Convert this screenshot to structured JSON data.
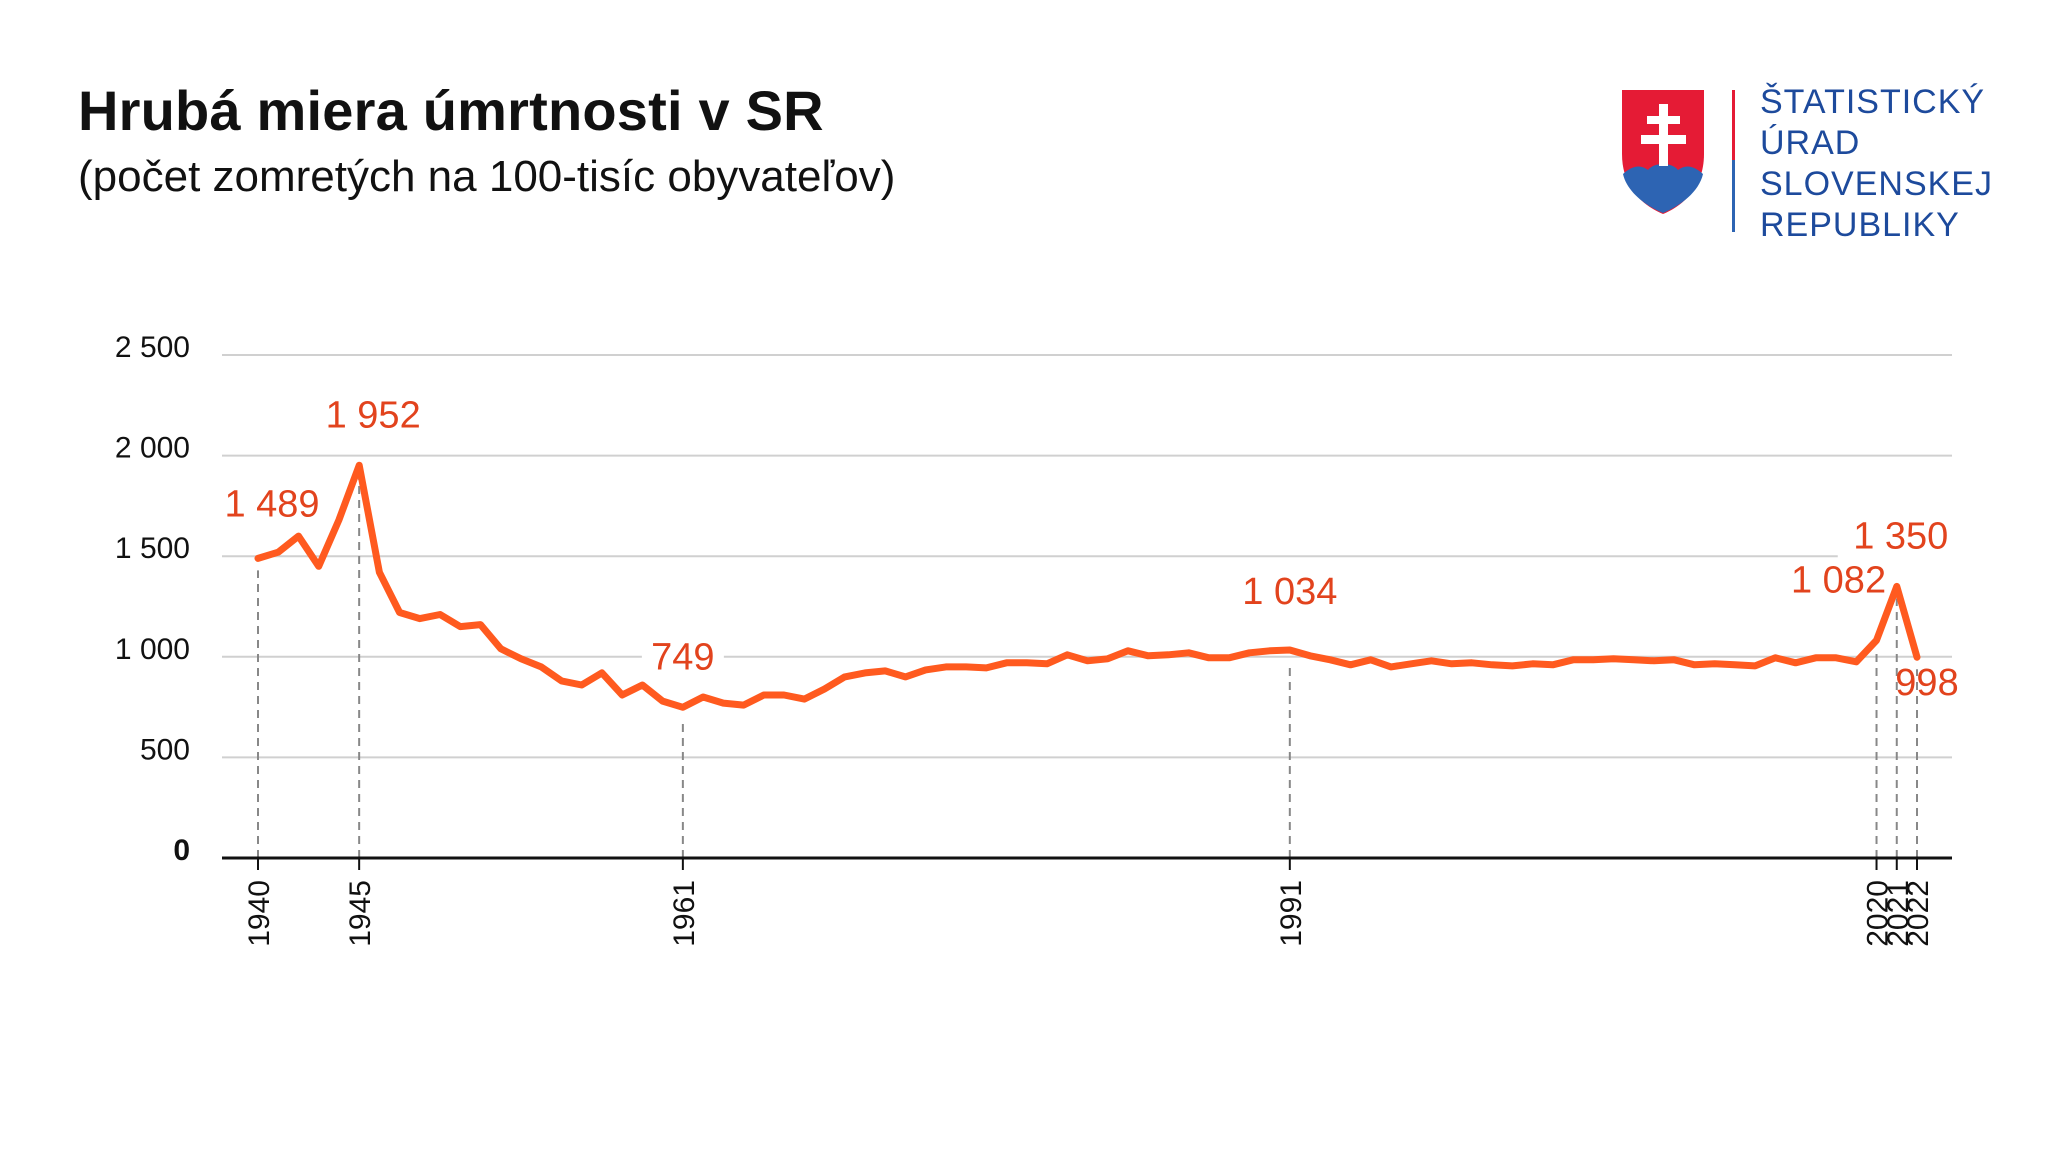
{
  "header": {
    "title": "Hrubá miera úmrtnosti v SR",
    "subtitle": "(počet zomretých na 100-tisíc obyvateľov)"
  },
  "logo": {
    "lines": [
      "ŠTATISTICKÝ",
      "ÚRAD",
      "SLOVENSKEJ",
      "REPUBLIKY"
    ]
  },
  "colors": {
    "line": "#ff5a1f",
    "label": "#e2431d",
    "grid": "#d0d0d0",
    "axis": "#111111",
    "logo_text": "#1d4a9c",
    "shield_red": "#e51b35",
    "shield_blue": "#2d64b3"
  },
  "chart_data": {
    "type": "line",
    "title": "Hrubá miera úmrtnosti v SR",
    "subtitle": "(počet zomretých na 100-tisíc obyvateľov)",
    "xlabel": "",
    "ylabel": "",
    "ylim": [
      0,
      2500
    ],
    "xlim": [
      1940,
      2022
    ],
    "yticks": [
      {
        "value": 0,
        "label": "0"
      },
      {
        "value": 500,
        "label": "500"
      },
      {
        "value": 1000,
        "label": "1 000"
      },
      {
        "value": 1500,
        "label": "1 500"
      },
      {
        "value": 2000,
        "label": "2 000"
      },
      {
        "value": 2500,
        "label": "2 500"
      }
    ],
    "xticks": [
      {
        "value": 1940,
        "label": "1940"
      },
      {
        "value": 1945,
        "label": "1945"
      },
      {
        "value": 1961,
        "label": "1961"
      },
      {
        "value": 1991,
        "label": "1991"
      },
      {
        "value": 2020,
        "label": "2020"
      },
      {
        "value": 2021,
        "label": "2021"
      },
      {
        "value": 2022,
        "label": "2022"
      }
    ],
    "grid": "horizontal",
    "x": [
      1940,
      1941,
      1942,
      1943,
      1944,
      1945,
      1946,
      1947,
      1948,
      1949,
      1950,
      1951,
      1952,
      1953,
      1954,
      1955,
      1956,
      1957,
      1958,
      1959,
      1960,
      1961,
      1962,
      1963,
      1964,
      1965,
      1966,
      1967,
      1968,
      1969,
      1970,
      1971,
      1972,
      1973,
      1974,
      1975,
      1976,
      1977,
      1978,
      1979,
      1980,
      1981,
      1982,
      1983,
      1984,
      1985,
      1986,
      1987,
      1988,
      1989,
      1990,
      1991,
      1992,
      1993,
      1994,
      1995,
      1996,
      1997,
      1998,
      1999,
      2000,
      2001,
      2002,
      2003,
      2004,
      2005,
      2006,
      2007,
      2008,
      2009,
      2010,
      2011,
      2012,
      2013,
      2014,
      2015,
      2016,
      2017,
      2018,
      2019,
      2020,
      2021,
      2022
    ],
    "values": [
      1489,
      1520,
      1600,
      1450,
      1680,
      1952,
      1420,
      1220,
      1190,
      1210,
      1150,
      1160,
      1040,
      990,
      950,
      880,
      860,
      920,
      810,
      860,
      780,
      749,
      800,
      770,
      760,
      810,
      810,
      790,
      840,
      900,
      920,
      930,
      900,
      935,
      950,
      950,
      945,
      970,
      970,
      965,
      1010,
      980,
      990,
      1030,
      1005,
      1010,
      1020,
      995,
      995,
      1020,
      1030,
      1034,
      1005,
      985,
      960,
      985,
      950,
      965,
      980,
      965,
      970,
      960,
      955,
      965,
      960,
      985,
      985,
      990,
      985,
      980,
      985,
      960,
      965,
      960,
      955,
      995,
      970,
      995,
      995,
      975,
      1082,
      1350,
      998
    ],
    "point_labels": [
      {
        "x": 1940,
        "text": "1 489"
      },
      {
        "x": 1945,
        "text": "1 952"
      },
      {
        "x": 1961,
        "text": "749"
      },
      {
        "x": 1991,
        "text": "1 034"
      },
      {
        "x": 2020,
        "text": "1 082"
      },
      {
        "x": 2021,
        "text": "1 350"
      },
      {
        "x": 2022,
        "text": "998"
      }
    ]
  }
}
